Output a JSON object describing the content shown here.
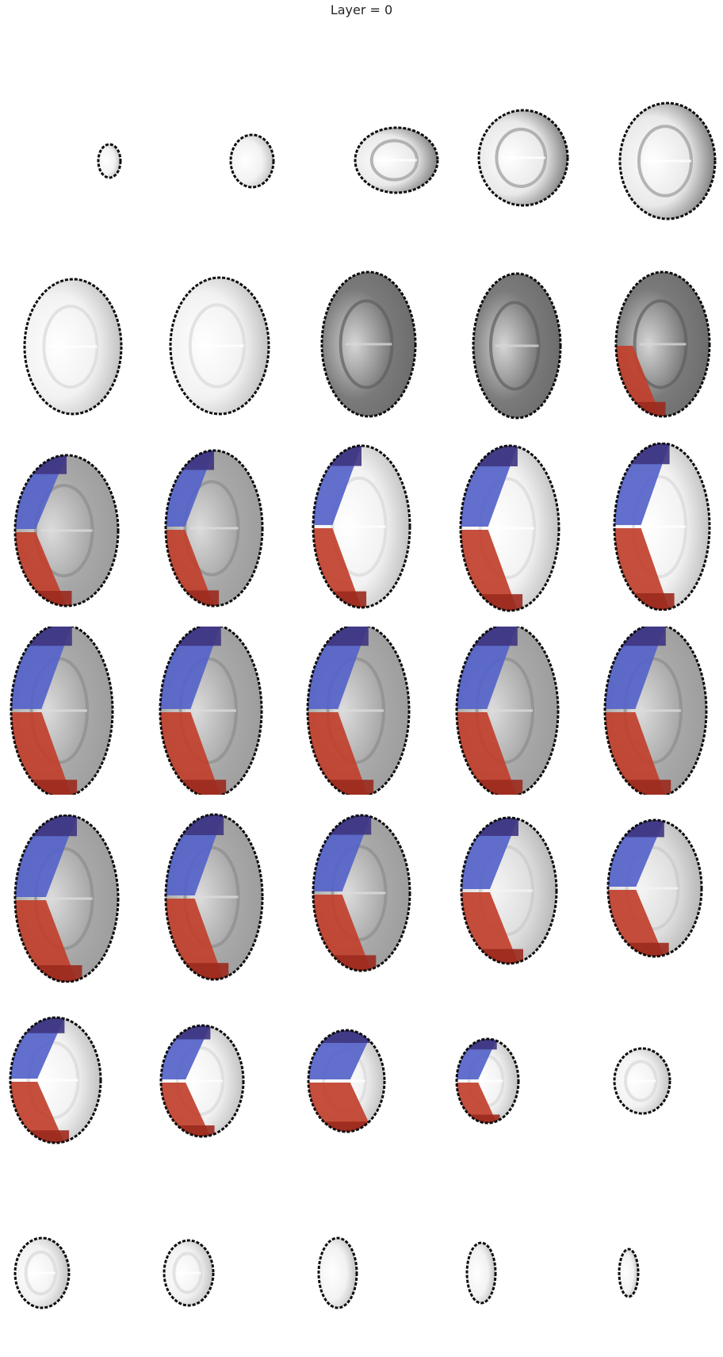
{
  "title": "Layer = 0",
  "colors": {
    "background": "#ffffff",
    "outline": "#0d0d0d",
    "overlay_blue": "#5563c9",
    "overlay_blue_dark": "#3e3580",
    "overlay_red": "#c0402b",
    "overlay_red_dark": "#9b2a1e"
  },
  "grid": {
    "rows": 7,
    "cols": 5
  },
  "slices": [
    {
      "index": 0,
      "brightness": "bright",
      "overlay": "none"
    },
    {
      "index": 1,
      "brightness": "bright",
      "overlay": "none"
    },
    {
      "index": 2,
      "brightness": "mixed",
      "overlay": "none"
    },
    {
      "index": 3,
      "brightness": "mixed",
      "overlay": "none"
    },
    {
      "index": 4,
      "brightness": "mixed",
      "overlay": "none"
    },
    {
      "index": 5,
      "brightness": "bright",
      "overlay": "none"
    },
    {
      "index": 6,
      "brightness": "bright",
      "overlay": "none"
    },
    {
      "index": 7,
      "brightness": "dark",
      "overlay": "none"
    },
    {
      "index": 8,
      "brightness": "dark",
      "overlay": "none"
    },
    {
      "index": 9,
      "brightness": "dark",
      "overlay": "small"
    },
    {
      "index": 10,
      "brightness": "mid",
      "overlay": "thin"
    },
    {
      "index": 11,
      "brightness": "mid",
      "overlay": "thin"
    },
    {
      "index": 12,
      "brightness": "bright",
      "overlay": "thin"
    },
    {
      "index": 13,
      "brightness": "bright",
      "overlay": "medium"
    },
    {
      "index": 14,
      "brightness": "bright",
      "overlay": "medium"
    },
    {
      "index": 15,
      "brightness": "mid",
      "overlay": "full"
    },
    {
      "index": 16,
      "brightness": "mid",
      "overlay": "full"
    },
    {
      "index": 17,
      "brightness": "mid",
      "overlay": "full"
    },
    {
      "index": 18,
      "brightness": "mid",
      "overlay": "full"
    },
    {
      "index": 19,
      "brightness": "mid",
      "overlay": "full"
    },
    {
      "index": 20,
      "brightness": "mid",
      "overlay": "full"
    },
    {
      "index": 21,
      "brightness": "mid",
      "overlay": "full"
    },
    {
      "index": 22,
      "brightness": "mid",
      "overlay": "full"
    },
    {
      "index": 23,
      "brightness": "light",
      "overlay": "full"
    },
    {
      "index": 24,
      "brightness": "light",
      "overlay": "full"
    },
    {
      "index": 25,
      "brightness": "bright",
      "overlay": "full"
    },
    {
      "index": 26,
      "brightness": "bright",
      "overlay": "split"
    },
    {
      "index": 27,
      "brightness": "bright",
      "overlay": "half"
    },
    {
      "index": 28,
      "brightness": "bright",
      "overlay": "small-left"
    },
    {
      "index": 29,
      "brightness": "bright",
      "overlay": "none"
    },
    {
      "index": 30,
      "brightness": "bright",
      "overlay": "none"
    },
    {
      "index": 31,
      "brightness": "bright",
      "overlay": "none"
    },
    {
      "index": 32,
      "brightness": "bright",
      "overlay": "none"
    },
    {
      "index": 33,
      "brightness": "bright",
      "overlay": "none"
    },
    {
      "index": 34,
      "brightness": "bright",
      "overlay": "none"
    }
  ]
}
